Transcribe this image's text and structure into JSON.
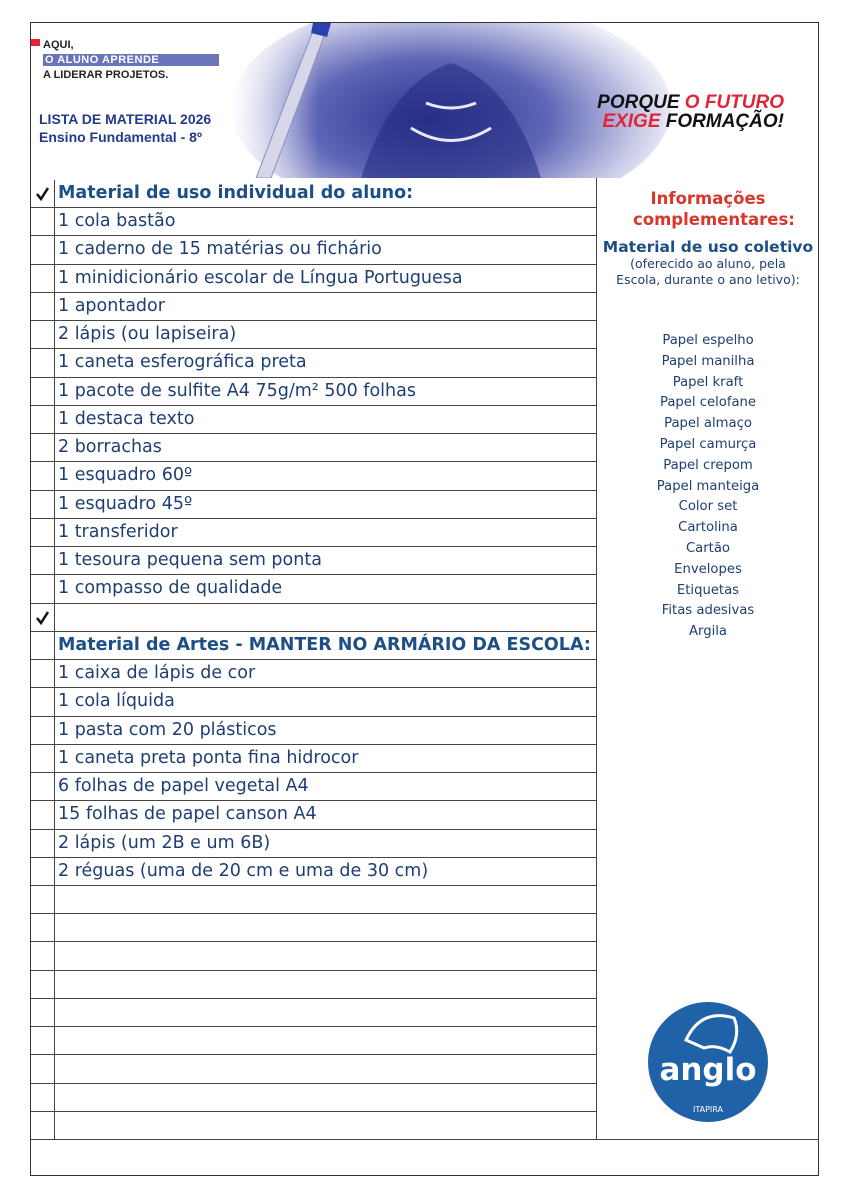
{
  "header": {
    "tagline": [
      "AQUI,",
      "O ALUNO APRENDE",
      "A LIDERAR PROJETOS."
    ],
    "title": "LISTA DE MATERIAL 2026",
    "subtitle": "Ensino Fundamental - 8º",
    "slogan": [
      [
        "PORQUE",
        "O FUTURO"
      ],
      [
        "EXIGE",
        "FORMAÇÃO!"
      ]
    ]
  },
  "list": {
    "rows": [
      {
        "check": true,
        "heading": true,
        "text": "Material de uso individual do aluno:"
      },
      {
        "text": "1 cola bastão"
      },
      {
        "text": "1 caderno de 15 matérias ou fichário"
      },
      {
        "text": "1 minidicionário escolar de Língua Portuguesa"
      },
      {
        "text": "1 apontador"
      },
      {
        "text": "2 lápis (ou lapiseira)"
      },
      {
        "text": "1 caneta esferográfica preta"
      },
      {
        "text": "1 pacote de sulfite A4 75g/m² 500 folhas"
      },
      {
        "text": "1 destaca texto"
      },
      {
        "text": "2 borrachas"
      },
      {
        "text": "1 esquadro 60º"
      },
      {
        "text": "1 esquadro 45º"
      },
      {
        "text": "1 transferidor"
      },
      {
        "text": "1 tesoura pequena sem ponta"
      },
      {
        "text": "1 compasso de qualidade"
      },
      {
        "check": true
      },
      {
        "heading": true,
        "text": "Material de Artes - MANTER NO ARMÁRIO DA ESCOLA:"
      },
      {
        "text": "1 caixa de lápis de cor"
      },
      {
        "text": "1 cola líquida"
      },
      {
        "text": "1 pasta com 20 plásticos"
      },
      {
        "text": "1 caneta preta ponta fina hidrocor"
      },
      {
        "text": "6 folhas de papel vegetal A4"
      },
      {
        "text": "15 folhas de papel canson A4"
      },
      {
        "text": "2 lápis (um 2B e um 6B)"
      },
      {
        "text": "2 réguas (uma de 20 cm e uma de 30 cm)"
      },
      null,
      null,
      null,
      null,
      null,
      null,
      null,
      null,
      null
    ]
  },
  "sidebar": {
    "title": "Informações complementares:",
    "subtitle": "Material de uso coletivo",
    "note": "(oferecido ao aluno, pela Escola, durante o ano letivo):",
    "items": [
      "Papel espelho",
      "Papel manilha",
      "Papel kraft",
      "Papel celofane",
      "Papel almaço",
      "Papel camurça",
      "Papel crepom",
      "Papel manteiga",
      "Color set",
      "Cartolina",
      "Cartão",
      "Envelopes",
      "Etiquetas",
      "Fitas adesivas",
      "Argila"
    ]
  },
  "logo": {
    "name": "anglo",
    "city": "ITAPIRA"
  }
}
